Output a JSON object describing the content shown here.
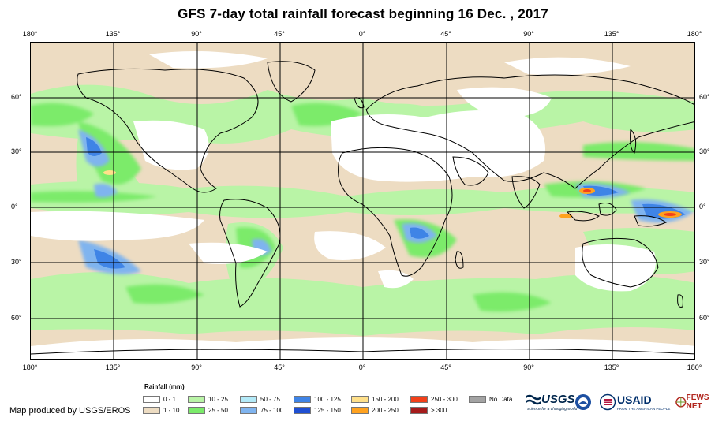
{
  "title": "GFS 7-day total rainfall forecast beginning 16 Dec. , 2017",
  "longitude_labels": [
    "180°",
    "135°",
    "90°",
    "45°",
    "0°",
    "45°",
    "90°",
    "135°",
    "180°"
  ],
  "latitude_labels": [
    "60°",
    "30°",
    "0°",
    "30°",
    "60°"
  ],
  "legend": {
    "title": "Rainfall (mm)",
    "items": [
      {
        "label": "0 - 1",
        "color": "#ffffff"
      },
      {
        "label": "1 - 10",
        "color": "#eddcc2"
      },
      {
        "label": "10 - 25",
        "color": "#b9f4a6"
      },
      {
        "label": "25 - 50",
        "color": "#7beb6a"
      },
      {
        "label": "50 - 75",
        "color": "#b3eaf8"
      },
      {
        "label": "75 - 100",
        "color": "#7fb4ef"
      },
      {
        "label": "100 - 125",
        "color": "#3f84e6"
      },
      {
        "label": "125 - 150",
        "color": "#1f4fd2"
      },
      {
        "label": "150 - 200",
        "color": "#ffe08a"
      },
      {
        "label": "200 - 250",
        "color": "#ffa21f"
      },
      {
        "label": "250 - 300",
        "color": "#f2401a"
      },
      {
        "label": "> 300",
        "color": "#a51b1b"
      },
      {
        "label": "No Data",
        "color": "#a3a3a3"
      }
    ]
  },
  "credit": "Map produced by USGS/EROS",
  "logos": {
    "usgs": "USGS",
    "usgs_tagline": "science for a changing world",
    "usaid": "USAID",
    "usaid_tagline": "FROM THE AMERICAN PEOPLE",
    "fews": "FEWS NET"
  }
}
